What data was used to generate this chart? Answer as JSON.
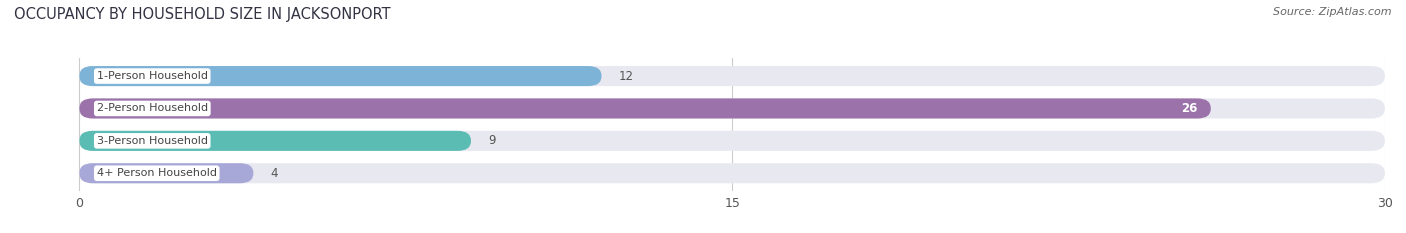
{
  "title": "OCCUPANCY BY HOUSEHOLD SIZE IN JACKSONPORT",
  "source": "Source: ZipAtlas.com",
  "categories": [
    "1-Person Household",
    "2-Person Household",
    "3-Person Household",
    "4+ Person Household"
  ],
  "values": [
    12,
    26,
    9,
    4
  ],
  "bar_colors": [
    "#7eb3d8",
    "#9b72aa",
    "#5bbcb4",
    "#a8a8d8"
  ],
  "bar_bg_color": "#e8e8f0",
  "bg_color": "#ffffff",
  "xlim": [
    -1.5,
    30
  ],
  "xmin": 0,
  "xmax": 30,
  "xticks": [
    0,
    15,
    30
  ],
  "label_color_dark": "#555555",
  "label_color_light": "#ffffff",
  "value_threshold": 24,
  "figsize": [
    14.06,
    2.33
  ],
  "dpi": 100
}
